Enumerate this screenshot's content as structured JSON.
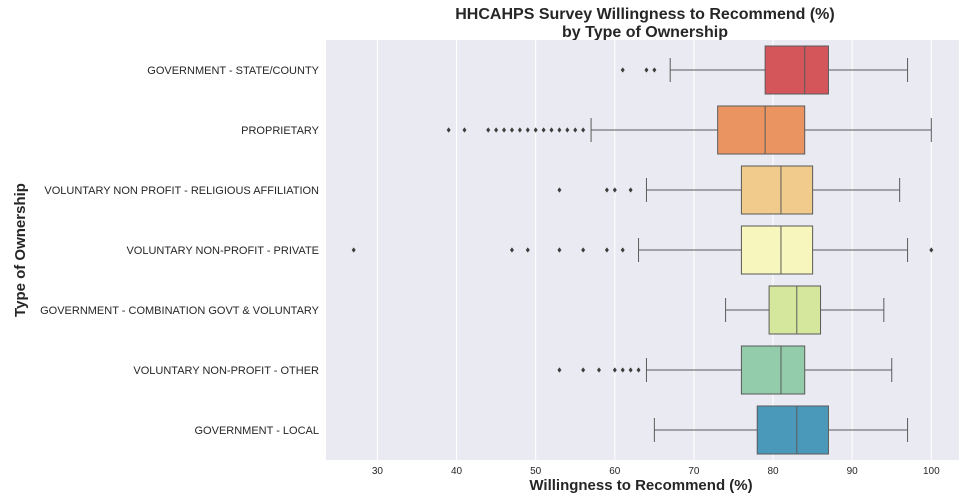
{
  "chart_data": {
    "type": "box",
    "orientation": "horizontal",
    "title": "HHCAHPS Survey Willingness to Recommend (%)",
    "subtitle": "by Type of Ownership",
    "xlabel": "Willingness to Recommend (%)",
    "ylabel": "Type of Ownership",
    "xlim": [
      23.5,
      103.5
    ],
    "xticks": [
      30,
      40,
      50,
      60,
      70,
      80,
      90,
      100
    ],
    "grid": true,
    "background": "#eaeaf2",
    "categories": [
      {
        "label": "GOVERNMENT - STATE/COUNTY",
        "whisker_low": 67,
        "q1": 79,
        "median": 84,
        "q3": 87,
        "whisker_high": 97,
        "outliers": [
          61,
          64,
          65
        ],
        "color": "#d4555a"
      },
      {
        "label": "PROPRIETARY",
        "whisker_low": 57,
        "q1": 73,
        "median": 79,
        "q3": 84,
        "whisker_high": 100,
        "outliers": [
          39,
          41,
          44,
          45,
          46,
          47,
          48,
          49,
          50,
          51,
          52,
          53,
          54,
          55,
          56
        ],
        "color": "#ea9561"
      },
      {
        "label": "VOLUNTARY NON PROFIT - RELIGIOUS AFFILIATION",
        "whisker_low": 64,
        "q1": 76,
        "median": 81,
        "q3": 85,
        "whisker_high": 96,
        "outliers": [
          53,
          59,
          60,
          62
        ],
        "color": "#f0cb8c"
      },
      {
        "label": "VOLUNTARY NON-PROFIT - PRIVATE",
        "whisker_low": 63,
        "q1": 76,
        "median": 81,
        "q3": 85,
        "whisker_high": 97,
        "outliers": [
          27,
          47,
          49,
          53,
          56,
          59,
          61,
          100
        ],
        "color": "#f7f6bc"
      },
      {
        "label": "GOVERNMENT - COMBINATION GOVT & VOLUNTARY",
        "whisker_low": 74,
        "q1": 79.5,
        "median": 83,
        "q3": 86,
        "whisker_high": 94,
        "outliers": [],
        "color": "#d4e79d"
      },
      {
        "label": "VOLUNTARY NON-PROFIT - OTHER",
        "whisker_low": 64,
        "q1": 76,
        "median": 81,
        "q3": 84,
        "whisker_high": 95,
        "outliers": [
          53,
          56,
          58,
          60,
          61,
          62,
          63
        ],
        "color": "#92ccab"
      },
      {
        "label": "GOVERNMENT - LOCAL",
        "whisker_low": 65,
        "q1": 78,
        "median": 83,
        "q3": 87,
        "whisker_high": 97,
        "outliers": [],
        "color": "#4b99ba"
      }
    ]
  }
}
